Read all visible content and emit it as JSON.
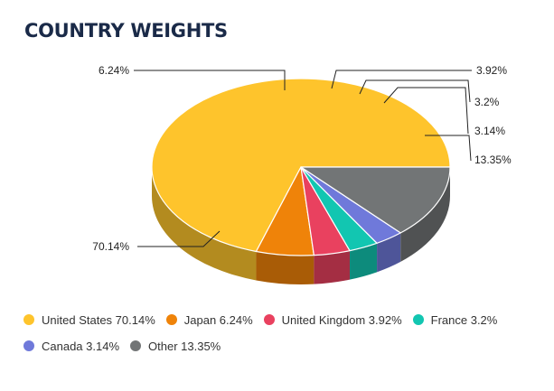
{
  "chart_data": {
    "type": "pie",
    "title": "COUNTRY WEIGHTS",
    "slices": [
      {
        "name": "United States",
        "value": 70.14,
        "label": "70.14%",
        "legend": "United States 70.14%",
        "color": "#fec42c",
        "side": "#b38b1f"
      },
      {
        "name": "Japan",
        "value": 6.24,
        "label": "6.24%",
        "legend": "Japan 6.24%",
        "color": "#ef8309",
        "side": "#a95c06"
      },
      {
        "name": "United Kingdom",
        "value": 3.92,
        "label": "3.92%",
        "legend": "United Kingdom 3.92%",
        "color": "#e9415f",
        "side": "#a42e43"
      },
      {
        "name": "France",
        "value": 3.2,
        "label": "3.2%",
        "legend": "France 3.2%",
        "color": "#12c6b1",
        "side": "#0d8b7c"
      },
      {
        "name": "Canada",
        "value": 3.14,
        "label": "3.14%",
        "legend": "Canada 3.14%",
        "color": "#6f79da",
        "side": "#4e5599"
      },
      {
        "name": "Other",
        "value": 13.35,
        "label": "13.35%",
        "legend": "Other 13.35%",
        "color": "#727576",
        "side": "#505253"
      }
    ],
    "legend_position": "bottom"
  }
}
